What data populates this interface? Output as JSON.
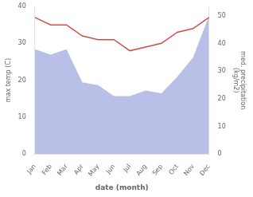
{
  "chart_data": {
    "type": "line",
    "categories": [
      "Jan",
      "Feb",
      "Mar",
      "Apr",
      "May",
      "Jun",
      "Jul",
      "Aug",
      "Sep",
      "Oct",
      "Nov",
      "Dec"
    ],
    "series": [
      {
        "type": "area",
        "color": "#b8c0e8",
        "axis": "y2",
        "values": [
          38,
          36,
          38,
          26,
          25,
          21,
          21,
          23,
          22,
          28,
          35,
          50
        ]
      },
      {
        "type": "line",
        "color": "#c85050",
        "values": [
          37,
          35,
          35,
          32,
          31,
          31,
          28,
          29,
          30,
          33,
          34,
          37
        ]
      }
    ],
    "xlabel": "date (month)",
    "ylabel": "max temp (C)",
    "y2label": "med. precipitation\n(kg/m2)",
    "ylim": [
      0,
      40
    ],
    "yticks": [
      0,
      10,
      20,
      30,
      40
    ],
    "y2lim": [
      0,
      53.5
    ],
    "y2ticks": [
      0,
      10,
      20,
      30,
      40,
      50
    ],
    "grid": false
  }
}
